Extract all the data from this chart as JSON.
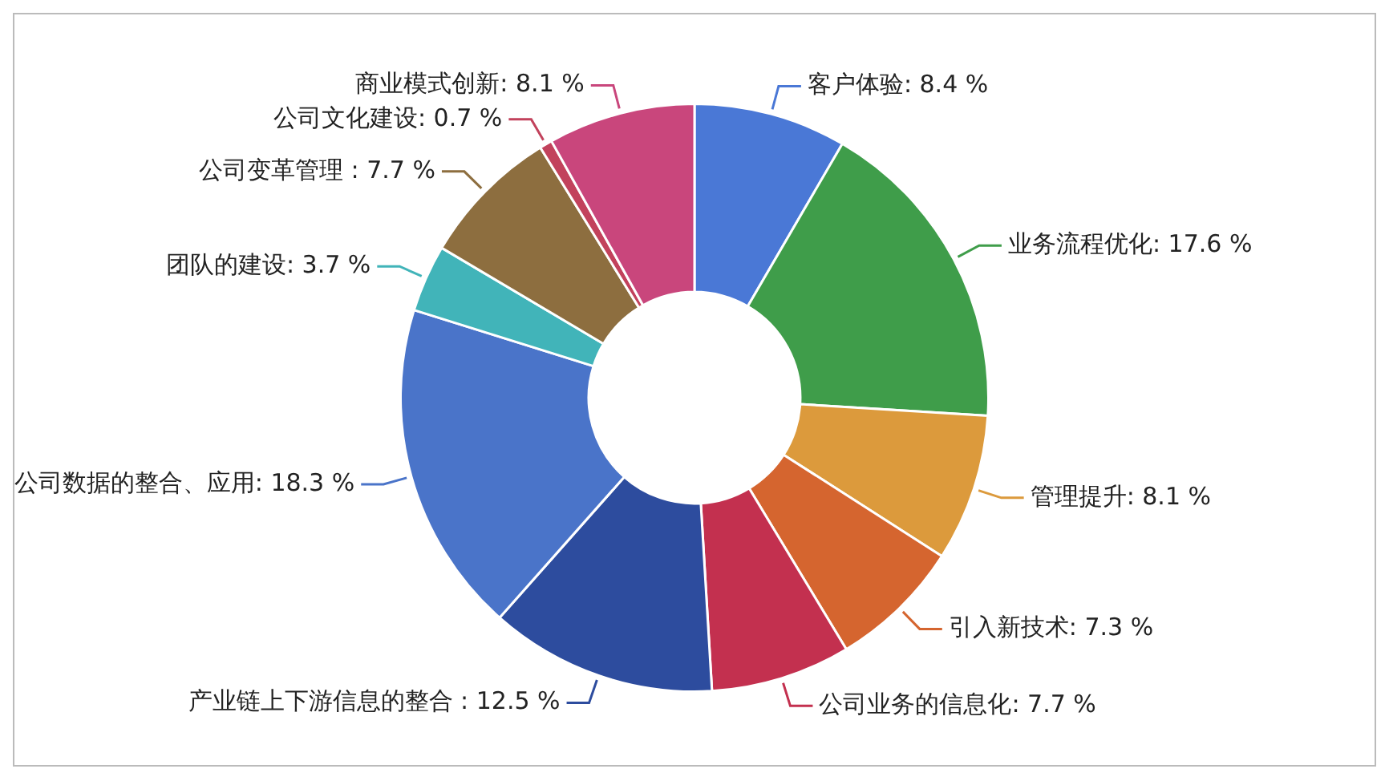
{
  "chart_data": {
    "type": "donut",
    "categories": [
      "客户体验",
      "业务流程优化",
      "管理提升",
      "引入新技术",
      "公司业务的信息化",
      "产业链上下游信息的整合 ",
      "公司数据的整合、应用",
      "团队的建设",
      "公司变革管理 ",
      "公司文化建设",
      "商业模式创新"
    ],
    "values": [
      8.4,
      17.6,
      8.1,
      7.3,
      7.7,
      12.5,
      18.3,
      3.7,
      7.7,
      0.7,
      8.1
    ],
    "value_labels": [
      "8.4 %",
      "17.6 %",
      "8.1 %",
      "7.3 %",
      "7.7 %",
      "12.5 %",
      "18.3 %",
      "3.7 %",
      "7.7 %",
      "0.7 %",
      "8.1 %"
    ],
    "colors": [
      "#4a78d6",
      "#3f9d4a",
      "#dc9a3c",
      "#d5652f",
      "#c3304f",
      "#2d4c9e",
      "#4a74c9",
      "#41b4b9",
      "#8d6e3f",
      "#c2425c",
      "#c9467c"
    ],
    "legend": false
  }
}
